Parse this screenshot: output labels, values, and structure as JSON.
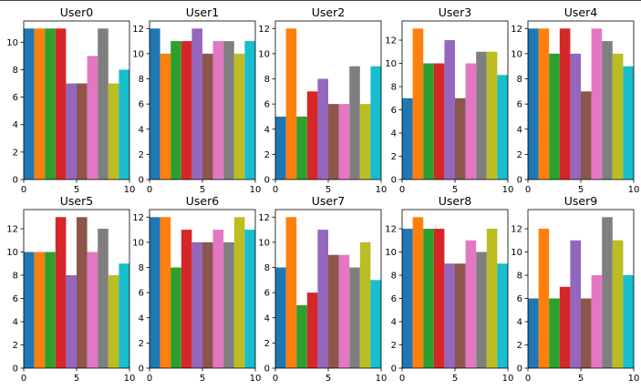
{
  "figure": {
    "background": "#ffffff",
    "series_colors": [
      "#1f77b4",
      "#ff7f0e",
      "#2ca02c",
      "#d62728",
      "#9467bd",
      "#8c564b",
      "#e377c2",
      "#7f7f7f",
      "#bcbd22",
      "#17becf"
    ]
  },
  "chart_data": [
    {
      "type": "bar",
      "title": "User0",
      "x": [
        0,
        1,
        2,
        3,
        4,
        5,
        6,
        7,
        8,
        9
      ],
      "values": [
        11,
        11,
        11,
        11,
        7,
        7,
        9,
        11,
        7,
        8
      ],
      "xlim": [
        0,
        10
      ],
      "ylim": [
        0,
        11.55
      ],
      "xticks": [
        0,
        5,
        10
      ],
      "yticks": [
        0,
        2,
        4,
        6,
        8,
        10
      ],
      "grid": false
    },
    {
      "type": "bar",
      "title": "User1",
      "x": [
        0,
        1,
        2,
        3,
        4,
        5,
        6,
        7,
        8,
        9
      ],
      "values": [
        12,
        10,
        11,
        11,
        12,
        10,
        11,
        11,
        10,
        11
      ],
      "xlim": [
        0,
        10
      ],
      "ylim": [
        0,
        12.6
      ],
      "xticks": [
        0,
        5,
        10
      ],
      "yticks": [
        0,
        2,
        4,
        6,
        8,
        10,
        12
      ],
      "grid": false
    },
    {
      "type": "bar",
      "title": "User2",
      "x": [
        0,
        1,
        2,
        3,
        4,
        5,
        6,
        7,
        8,
        9
      ],
      "values": [
        5,
        12,
        5,
        7,
        8,
        6,
        6,
        9,
        6,
        9
      ],
      "xlim": [
        0,
        10
      ],
      "ylim": [
        0,
        12.6
      ],
      "xticks": [
        0,
        5,
        10
      ],
      "yticks": [
        0,
        2,
        4,
        6,
        8,
        10,
        12
      ],
      "grid": false
    },
    {
      "type": "bar",
      "title": "User3",
      "x": [
        0,
        1,
        2,
        3,
        4,
        5,
        6,
        7,
        8,
        9
      ],
      "values": [
        7,
        13,
        10,
        10,
        12,
        7,
        10,
        11,
        11,
        9
      ],
      "xlim": [
        0,
        10
      ],
      "ylim": [
        0,
        13.65
      ],
      "xticks": [
        0,
        5,
        10
      ],
      "yticks": [
        0,
        2,
        4,
        6,
        8,
        10,
        12
      ],
      "grid": false
    },
    {
      "type": "bar",
      "title": "User4",
      "x": [
        0,
        1,
        2,
        3,
        4,
        5,
        6,
        7,
        8,
        9
      ],
      "values": [
        12,
        12,
        10,
        12,
        10,
        7,
        12,
        11,
        10,
        9
      ],
      "xlim": [
        0,
        10
      ],
      "ylim": [
        0,
        12.6
      ],
      "xticks": [
        0,
        5,
        10
      ],
      "yticks": [
        0,
        2,
        4,
        6,
        8,
        10,
        12
      ],
      "grid": false
    },
    {
      "type": "bar",
      "title": "User5",
      "x": [
        0,
        1,
        2,
        3,
        4,
        5,
        6,
        7,
        8,
        9
      ],
      "values": [
        10,
        10,
        10,
        13,
        8,
        13,
        10,
        12,
        8,
        9
      ],
      "xlim": [
        0,
        10
      ],
      "ylim": [
        0,
        13.65
      ],
      "xticks": [
        0,
        5,
        10
      ],
      "yticks": [
        0,
        2,
        4,
        6,
        8,
        10,
        12
      ],
      "grid": false
    },
    {
      "type": "bar",
      "title": "User6",
      "x": [
        0,
        1,
        2,
        3,
        4,
        5,
        6,
        7,
        8,
        9
      ],
      "values": [
        12,
        12,
        8,
        11,
        10,
        10,
        11,
        10,
        12,
        11
      ],
      "xlim": [
        0,
        10
      ],
      "ylim": [
        0,
        12.6
      ],
      "xticks": [
        0,
        5,
        10
      ],
      "yticks": [
        0,
        2,
        4,
        6,
        8,
        10,
        12
      ],
      "grid": false
    },
    {
      "type": "bar",
      "title": "User7",
      "x": [
        0,
        1,
        2,
        3,
        4,
        5,
        6,
        7,
        8,
        9
      ],
      "values": [
        8,
        12,
        5,
        6,
        11,
        9,
        9,
        8,
        10,
        7
      ],
      "xlim": [
        0,
        10
      ],
      "ylim": [
        0,
        12.6
      ],
      "xticks": [
        0,
        5,
        10
      ],
      "yticks": [
        0,
        2,
        4,
        6,
        8,
        10,
        12
      ],
      "grid": false
    },
    {
      "type": "bar",
      "title": "User8",
      "x": [
        0,
        1,
        2,
        3,
        4,
        5,
        6,
        7,
        8,
        9
      ],
      "values": [
        12,
        13,
        12,
        12,
        9,
        9,
        11,
        10,
        12,
        9
      ],
      "xlim": [
        0,
        10
      ],
      "ylim": [
        0,
        13.65
      ],
      "xticks": [
        0,
        5,
        10
      ],
      "yticks": [
        0,
        2,
        4,
        6,
        8,
        10,
        12
      ],
      "grid": false
    },
    {
      "type": "bar",
      "title": "User9",
      "x": [
        0,
        1,
        2,
        3,
        4,
        5,
        6,
        7,
        8,
        9
      ],
      "values": [
        6,
        12,
        6,
        7,
        11,
        6,
        8,
        13,
        11,
        8
      ],
      "xlim": [
        0,
        10
      ],
      "ylim": [
        0,
        13.65
      ],
      "xticks": [
        0,
        5,
        10
      ],
      "yticks": [
        0,
        2,
        4,
        6,
        8,
        10,
        12
      ],
      "grid": false
    }
  ]
}
